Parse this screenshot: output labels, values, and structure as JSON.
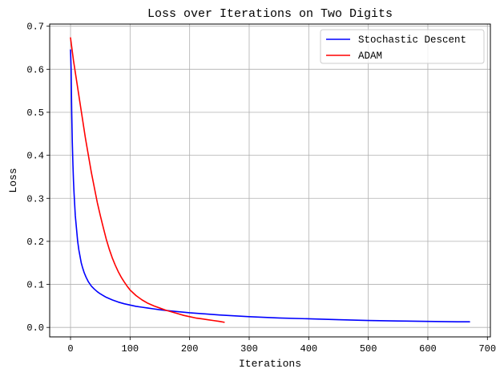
{
  "chart_data": {
    "type": "line",
    "title": "Loss over Iterations on Two Digits",
    "xlabel": "Iterations",
    "ylabel": "Loss",
    "xlim": [
      -35,
      705
    ],
    "ylim": [
      -0.022,
      0.705
    ],
    "xticks": [
      0,
      100,
      200,
      300,
      400,
      500,
      600,
      700
    ],
    "yticks": [
      0.0,
      0.1,
      0.2,
      0.3,
      0.4,
      0.5,
      0.6,
      0.7
    ],
    "xtick_labels": [
      "0",
      "100",
      "200",
      "300",
      "400",
      "500",
      "600",
      "700"
    ],
    "ytick_labels": [
      "0.0",
      "0.1",
      "0.2",
      "0.3",
      "0.4",
      "0.5",
      "0.6",
      "0.7"
    ],
    "grid": true,
    "legend_position": "top-right",
    "series": [
      {
        "name": "Stochastic Descent",
        "color": "#0000ff",
        "x": [
          0,
          1,
          2,
          3,
          4,
          5,
          6,
          7,
          8,
          10,
          12,
          14,
          16,
          18,
          20,
          23,
          26,
          30,
          35,
          40,
          45,
          50,
          60,
          70,
          80,
          90,
          100,
          110,
          120,
          130,
          140,
          150,
          170,
          200,
          250,
          300,
          350,
          400,
          450,
          500,
          550,
          600,
          650,
          670
        ],
        "y": [
          0.645,
          0.6,
          0.5,
          0.43,
          0.38,
          0.34,
          0.31,
          0.285,
          0.26,
          0.23,
          0.2,
          0.18,
          0.165,
          0.15,
          0.14,
          0.127,
          0.117,
          0.106,
          0.096,
          0.089,
          0.083,
          0.078,
          0.07,
          0.064,
          0.059,
          0.055,
          0.052,
          0.049,
          0.047,
          0.045,
          0.043,
          0.041,
          0.038,
          0.034,
          0.029,
          0.025,
          0.022,
          0.02,
          0.018,
          0.016,
          0.015,
          0.014,
          0.013,
          0.013
        ]
      },
      {
        "name": "ADAM",
        "color": "#ff0000",
        "x": [
          0,
          5,
          10,
          15,
          20,
          25,
          30,
          35,
          40,
          45,
          50,
          55,
          60,
          65,
          70,
          75,
          80,
          85,
          90,
          95,
          100,
          110,
          120,
          130,
          140,
          150,
          160,
          170,
          180,
          190,
          200,
          210,
          220,
          230,
          240,
          250,
          258
        ],
        "y": [
          0.673,
          0.62,
          0.575,
          0.53,
          0.485,
          0.44,
          0.4,
          0.36,
          0.325,
          0.29,
          0.26,
          0.232,
          0.205,
          0.182,
          0.162,
          0.145,
          0.13,
          0.117,
          0.106,
          0.096,
          0.087,
          0.074,
          0.064,
          0.056,
          0.05,
          0.045,
          0.04,
          0.036,
          0.032,
          0.028,
          0.025,
          0.022,
          0.02,
          0.018,
          0.016,
          0.014,
          0.012
        ]
      }
    ]
  }
}
